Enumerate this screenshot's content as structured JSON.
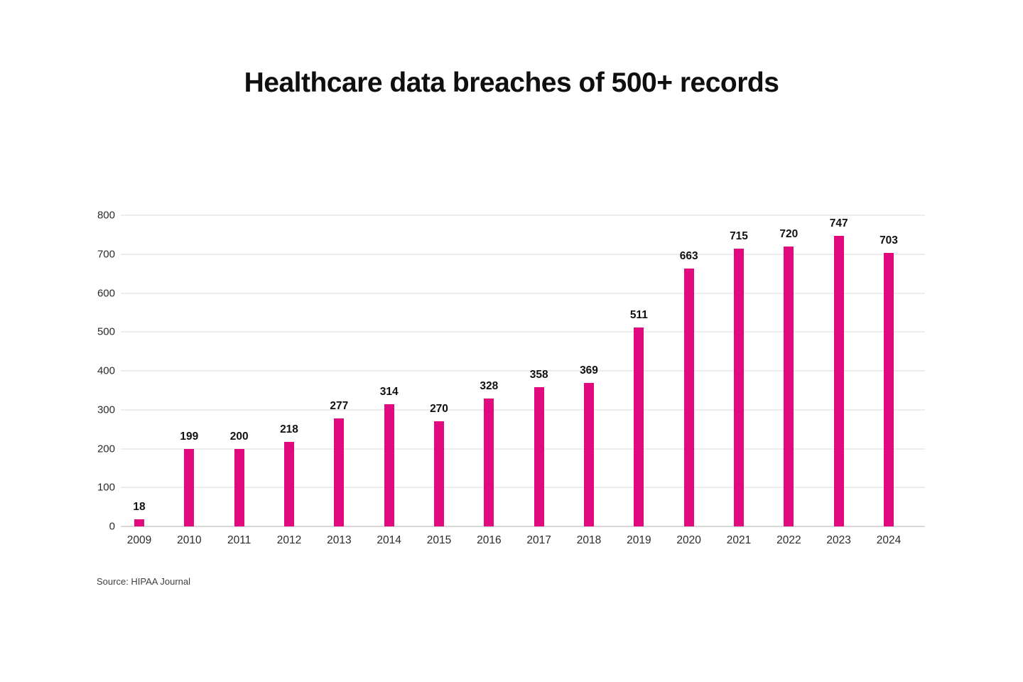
{
  "chart_data": {
    "type": "bar",
    "title": "Healthcare data breaches of 500+ records",
    "categories": [
      "2009",
      "2010",
      "2011",
      "2012",
      "2013",
      "2014",
      "2015",
      "2016",
      "2017",
      "2018",
      "2019",
      "2020",
      "2021",
      "2022",
      "2023",
      "2024"
    ],
    "values": [
      18,
      199,
      200,
      218,
      277,
      314,
      270,
      328,
      358,
      369,
      511,
      663,
      715,
      720,
      747,
      703
    ],
    "xlabel": "",
    "ylabel": "",
    "ylim": [
      0,
      800
    ],
    "yticks": [
      0,
      100,
      200,
      300,
      400,
      500,
      600,
      700,
      800
    ],
    "grid": "horizontal",
    "legend_position": "none",
    "bar_color": "#e0097e",
    "data_labels": true
  },
  "source_note": "Source: HIPAA Journal",
  "colors": {
    "background": "#ffffff",
    "bar": "#e0097e",
    "gridline": "#ededed",
    "axis_line": "#d9d9d9",
    "title_text": "#0f0f0f",
    "tick_text": "#2b2b2b",
    "source_text": "#414141"
  }
}
